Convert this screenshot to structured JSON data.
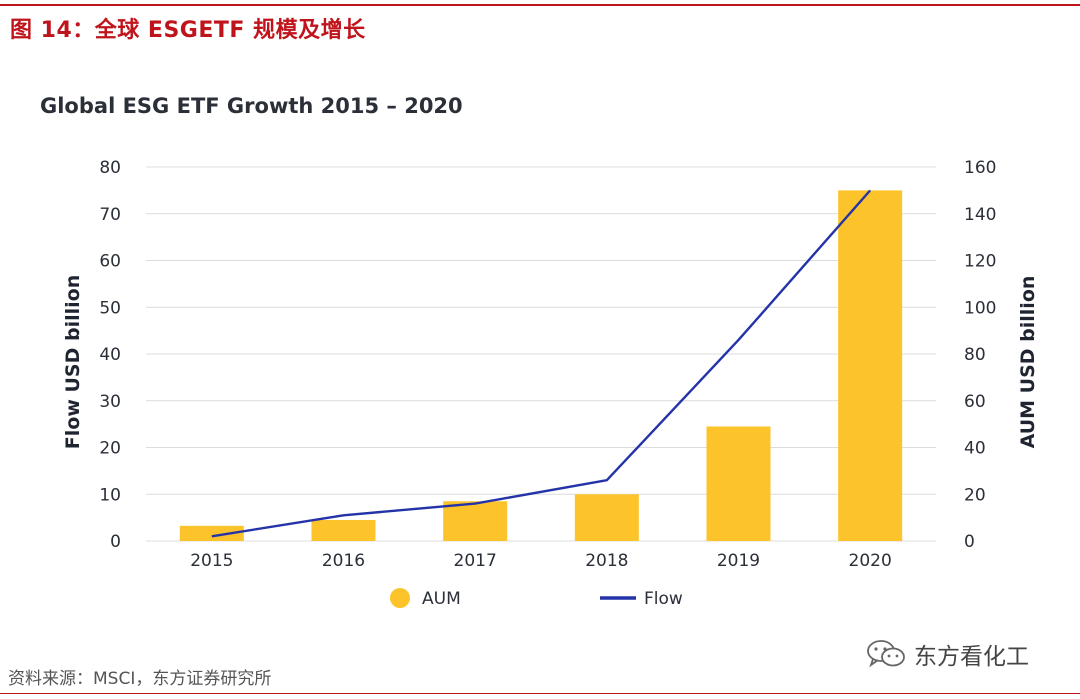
{
  "figure_caption": "图 14：全球 ESGETF 规模及增长",
  "source_note": "资料来源：MSCI，东方证券研究所",
  "watermark_text": "东方看化工",
  "colors": {
    "accent_red": "#c0141c",
    "aum_bar": "#fdc32a",
    "flow_line": "#2434a8",
    "grid": "#dcdcdc",
    "text": "#2b2f38"
  },
  "chart_data": {
    "type": "bar",
    "title": "Global ESG ETF Growth 2015 – 2020",
    "categories": [
      "2015",
      "2016",
      "2017",
      "2018",
      "2019",
      "2020"
    ],
    "y_left": {
      "label": "Flow USD billion",
      "lim": [
        0,
        80
      ],
      "ticks": [
        "0",
        "10",
        "20",
        "30",
        "40",
        "50",
        "60",
        "70",
        "80"
      ]
    },
    "y_right": {
      "label": "AUM USD billion",
      "lim": [
        0,
        160
      ],
      "ticks": [
        "0",
        "20",
        "40",
        "60",
        "80",
        "100",
        "120",
        "140",
        "160"
      ]
    },
    "series": [
      {
        "name": "AUM",
        "type": "bar",
        "axis": "right",
        "values": [
          6.5,
          9,
          17,
          20,
          49,
          150
        ]
      },
      {
        "name": "Flow",
        "type": "line",
        "axis": "left",
        "values": [
          1,
          5.5,
          8,
          13,
          43,
          75
        ]
      }
    ],
    "grid": true,
    "legend": "bottom"
  }
}
